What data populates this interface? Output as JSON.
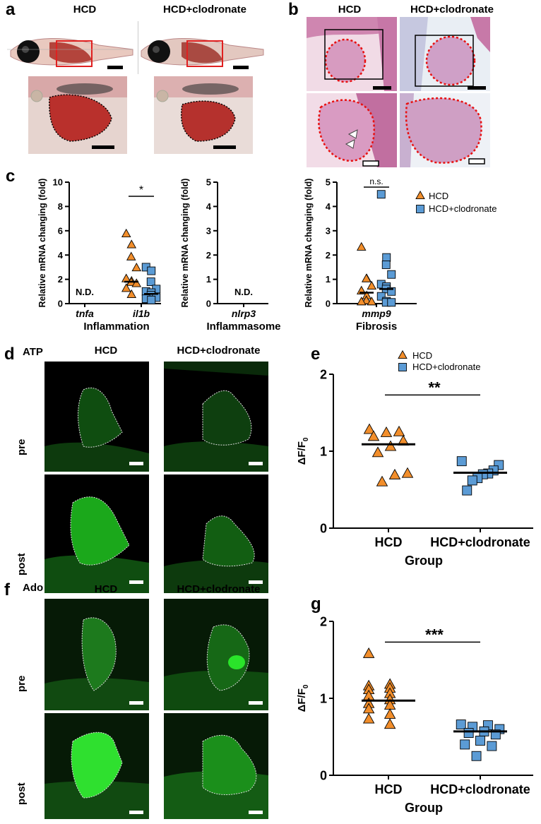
{
  "panels": {
    "a": {
      "label": "a",
      "headers": [
        "HCD",
        "HCD+clodronate"
      ]
    },
    "b": {
      "label": "b",
      "headers": [
        "HCD",
        "HCD+clodronate"
      ]
    },
    "c": {
      "label": "c"
    },
    "d": {
      "label": "d",
      "marker": "ATP",
      "headers": [
        "HCD",
        "HCD+clodronate"
      ],
      "rows": [
        "pre",
        "post"
      ]
    },
    "e": {
      "label": "e"
    },
    "f": {
      "label": "f",
      "marker": "Ado",
      "headers": [
        "HCD",
        "HCD+clodronate"
      ],
      "rows": [
        "pre",
        "post"
      ]
    },
    "g": {
      "label": "g"
    }
  },
  "legend": {
    "hcd": "HCD",
    "clod": "HCD+clodronate"
  },
  "colors": {
    "hcd": "#f28e2b",
    "clod": "#5b9bd5",
    "microscopy_green": "#22cc22",
    "scale_bar": "#000000"
  },
  "chart_data": [
    {
      "id": "c1",
      "type": "scatter",
      "ylabel": "Relative mRNA changing (fold)",
      "ylim": [
        0,
        10
      ],
      "yticks": [
        0,
        2,
        4,
        6,
        8,
        10
      ],
      "categories": [
        "tnfa",
        "il1b"
      ],
      "group_label": "Inflammation",
      "nd_labels": [
        {
          "category": "tnfa",
          "text": "N.D."
        }
      ],
      "significance": {
        "category": "il1b",
        "text": "*"
      },
      "series": [
        {
          "name": "HCD",
          "category": "il1b",
          "values": [
            5.7,
            4.8,
            3.8,
            2.9,
            2.0,
            1.8,
            1.7,
            1.6,
            1.2,
            0.7
          ],
          "mean": 1.8
        },
        {
          "name": "HCD+clodronate",
          "category": "il1b",
          "values": [
            3.0,
            2.7,
            1.8,
            1.2,
            1.0,
            0.9,
            0.7,
            0.5,
            0.4,
            0.3
          ],
          "mean": 0.8
        }
      ]
    },
    {
      "id": "c2",
      "type": "scatter",
      "ylabel": "Relative mRNA changing (fold)",
      "ylim": [
        0,
        5
      ],
      "yticks": [
        0,
        1,
        2,
        3,
        4,
        5
      ],
      "categories": [
        "nlrp3"
      ],
      "group_label": "Inflammasome",
      "nd_labels": [
        {
          "category": "nlrp3",
          "text": "N.D."
        }
      ]
    },
    {
      "id": "c3",
      "type": "scatter",
      "ylabel": "Relative mRNA changing (fold)",
      "ylim": [
        0,
        5
      ],
      "yticks": [
        0,
        1,
        2,
        3,
        4,
        5
      ],
      "categories": [
        "mmp9"
      ],
      "group_label": "Fibrosis",
      "significance": {
        "category": "mmp9",
        "text": "n.s."
      },
      "series": [
        {
          "name": "HCD",
          "category": "mmp9",
          "values": [
            2.3,
            1.0,
            1.0,
            0.7,
            0.5,
            0.3,
            0.1,
            0.05,
            0.05
          ],
          "mean": 0.45
        },
        {
          "name": "HCD+clodronate",
          "category": "mmp9",
          "values": [
            4.5,
            1.9,
            1.6,
            1.2,
            0.8,
            0.7,
            0.6,
            0.5,
            0.3,
            0.1,
            0.05,
            0.05
          ],
          "mean": 0.6
        }
      ]
    },
    {
      "id": "e",
      "type": "scatter",
      "ylabel": "ΔF/F",
      "ylabel_sub": "0",
      "xlabel": "Group",
      "ylim": [
        0,
        2
      ],
      "yticks": [
        0,
        1,
        2
      ],
      "categories": [
        "HCD",
        "HCD+clodronate"
      ],
      "significance": {
        "text": "**"
      },
      "legend": [
        "HCD",
        "HCD+clodronate"
      ],
      "series": [
        {
          "name": "HCD",
          "values": [
            1.27,
            1.24,
            1.23,
            1.18,
            1.12,
            1.05,
            0.97,
            0.7,
            0.68,
            0.59
          ],
          "mean": 1.09
        },
        {
          "name": "HCD+clodronate",
          "values": [
            0.87,
            0.82,
            0.75,
            0.71,
            0.7,
            0.65,
            0.62,
            0.49
          ],
          "mean": 0.72
        }
      ]
    },
    {
      "id": "g",
      "type": "scatter",
      "ylabel": "ΔF/F",
      "ylabel_sub": "0",
      "xlabel": "Group",
      "ylim": [
        0,
        2
      ],
      "yticks": [
        0,
        1,
        2
      ],
      "categories": [
        "HCD",
        "HCD+clodronate"
      ],
      "significance": {
        "text": "***"
      },
      "series": [
        {
          "name": "HCD",
          "values": [
            1.57,
            1.17,
            1.15,
            1.12,
            1.1,
            1.05,
            1.02,
            0.97,
            0.92,
            0.9,
            0.85,
            0.78,
            0.72,
            0.65
          ],
          "mean": 0.97
        },
        {
          "name": "HCD+clodronate",
          "values": [
            0.66,
            0.65,
            0.63,
            0.6,
            0.57,
            0.55,
            0.53,
            0.45,
            0.4,
            0.38,
            0.25
          ],
          "mean": 0.57
        }
      ]
    }
  ]
}
